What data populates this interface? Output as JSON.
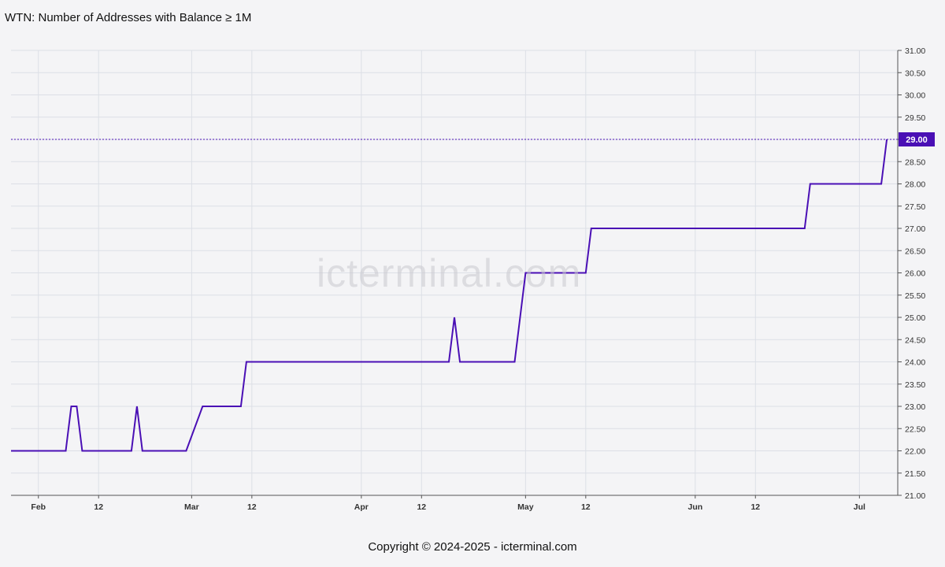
{
  "header": {
    "title": "WTN: Number of Addresses with Balance ≥ 1M"
  },
  "watermark": {
    "text": "icterminal.com"
  },
  "footer": {
    "copyright": "Copyright © 2024-2025 - icterminal.com"
  },
  "colors": {
    "line": "#4a0fb5",
    "grid": "#dcdfe6",
    "background": "#f4f4f6",
    "axis": "#555555"
  },
  "chart_data": {
    "type": "line",
    "title": "WTN: Number of Addresses with Balance ≥ 1M",
    "xlabel": "",
    "ylabel": "",
    "ylim": [
      21,
      31
    ],
    "y_ticks": [
      "21.00",
      "21.50",
      "22.00",
      "22.50",
      "23.00",
      "23.50",
      "24.00",
      "24.50",
      "25.00",
      "25.50",
      "26.00",
      "26.50",
      "27.00",
      "27.50",
      "28.00",
      "28.50",
      "29.00",
      "29.50",
      "30.00",
      "30.50",
      "31.00"
    ],
    "x_range": [
      "2025-01-27",
      "2025-07-08"
    ],
    "x_ticks": [
      {
        "date": "2025-02-01",
        "label": "Feb"
      },
      {
        "date": "2025-02-12",
        "label": "12"
      },
      {
        "date": "2025-03-01",
        "label": "Mar"
      },
      {
        "date": "2025-03-12",
        "label": "12"
      },
      {
        "date": "2025-04-01",
        "label": "Apr"
      },
      {
        "date": "2025-04-12",
        "label": "12"
      },
      {
        "date": "2025-05-01",
        "label": "May"
      },
      {
        "date": "2025-05-12",
        "label": "12"
      },
      {
        "date": "2025-06-01",
        "label": "Jun"
      },
      {
        "date": "2025-06-12",
        "label": "12"
      },
      {
        "date": "2025-07-01",
        "label": "Jul"
      }
    ],
    "grid": true,
    "last_value_label": "29.00",
    "series": [
      {
        "values": [
          {
            "x": "2025-01-27",
            "y": 22
          },
          {
            "x": "2025-02-06",
            "y": 22
          },
          {
            "x": "2025-02-07",
            "y": 23
          },
          {
            "x": "2025-02-08",
            "y": 23
          },
          {
            "x": "2025-02-09",
            "y": 22
          },
          {
            "x": "2025-02-18",
            "y": 22
          },
          {
            "x": "2025-02-19",
            "y": 23
          },
          {
            "x": "2025-02-20",
            "y": 22
          },
          {
            "x": "2025-02-28",
            "y": 22
          },
          {
            "x": "2025-03-03",
            "y": 23
          },
          {
            "x": "2025-03-10",
            "y": 23
          },
          {
            "x": "2025-03-11",
            "y": 24
          },
          {
            "x": "2025-04-17",
            "y": 24
          },
          {
            "x": "2025-04-18",
            "y": 25
          },
          {
            "x": "2025-04-19",
            "y": 24
          },
          {
            "x": "2025-04-29",
            "y": 24
          },
          {
            "x": "2025-05-01",
            "y": 26
          },
          {
            "x": "2025-05-12",
            "y": 26
          },
          {
            "x": "2025-05-13",
            "y": 27
          },
          {
            "x": "2025-06-21",
            "y": 27
          },
          {
            "x": "2025-06-22",
            "y": 28
          },
          {
            "x": "2025-07-05",
            "y": 28
          },
          {
            "x": "2025-07-06",
            "y": 29
          }
        ]
      }
    ]
  }
}
